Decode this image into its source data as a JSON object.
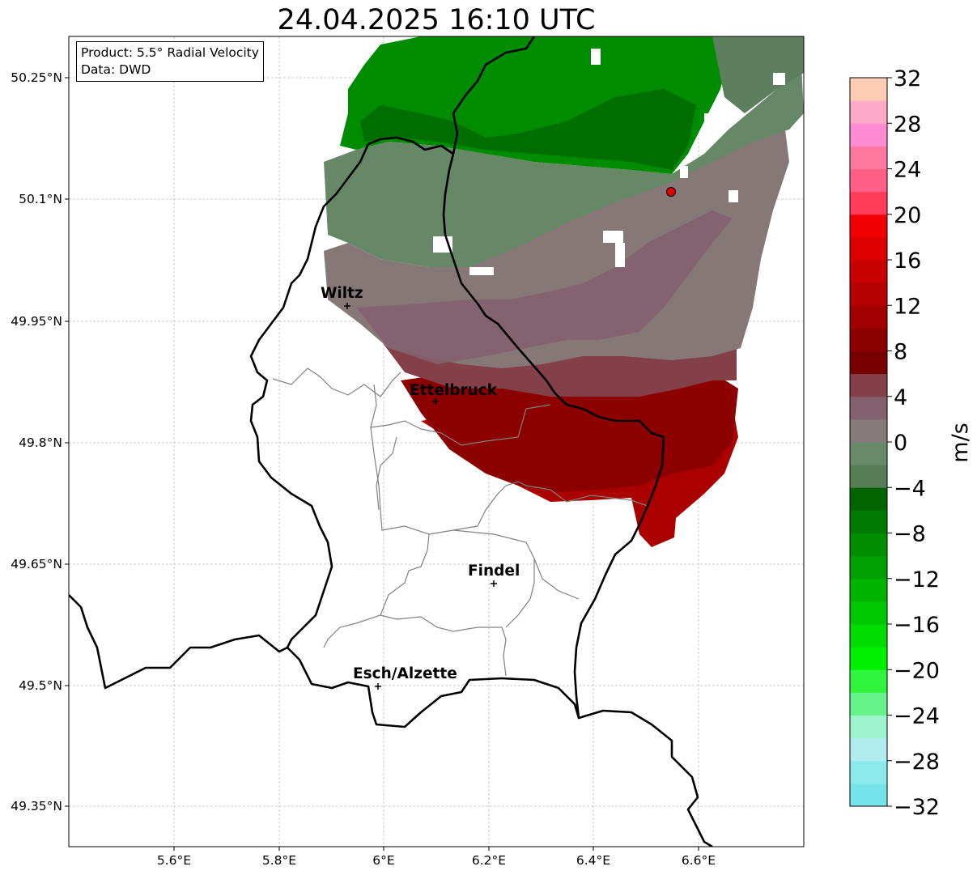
{
  "title": "24.04.2025 16:10 UTC",
  "info_box": {
    "product": "Product: 5.5° Radial Velocity",
    "data_source": "Data: DWD"
  },
  "axes": {
    "lon_ticks": [
      "5.6°E",
      "5.8°E",
      "6°E",
      "6.2°E",
      "6.4°E",
      "6.6°E"
    ],
    "lat_ticks": [
      "50.25°N",
      "50.1°N",
      "49.95°N",
      "49.8°N",
      "49.65°N",
      "49.5°N",
      "49.35°N"
    ]
  },
  "cities": [
    {
      "name": "Wiltz"
    },
    {
      "name": "Ettelbruck"
    },
    {
      "name": "Findel"
    },
    {
      "name": "Esch/Alzette"
    }
  ],
  "colorbar": {
    "unit": "m/s",
    "tick_labels": [
      "32",
      "28",
      "24",
      "20",
      "16",
      "12",
      "8",
      "4",
      "0",
      "−4",
      "−8",
      "−12",
      "−16",
      "−20",
      "−24",
      "−28",
      "−32"
    ],
    "range": [
      -32,
      32
    ],
    "colors_bottom_to_top": [
      "#74e4ea",
      "#8ceaed",
      "#b0ecef",
      "#9cf4cc",
      "#68f38a",
      "#2ff53f",
      "#00f000",
      "#00dc00",
      "#00c800",
      "#00b400",
      "#00a000",
      "#008e00",
      "#007a00",
      "#006400",
      "#567d56",
      "#688a68",
      "#877a7a",
      "#83606e",
      "#834048",
      "#780000",
      "#8c0000",
      "#a00000",
      "#b40000",
      "#c80000",
      "#dc0000",
      "#f00000",
      "#ff3c5a",
      "#ff5f87",
      "#ff78a0",
      "#ff8cd2",
      "#ffaac8",
      "#ffcdb4"
    ]
  },
  "radar_colors": {
    "green_dark": "#006e00",
    "green": "#008c00",
    "green_gray": "#668866",
    "gray": "#877878",
    "maroon": "#834048",
    "dark_red": "#8c0000",
    "red": "#aa0000",
    "radar_site": "#e00000"
  }
}
